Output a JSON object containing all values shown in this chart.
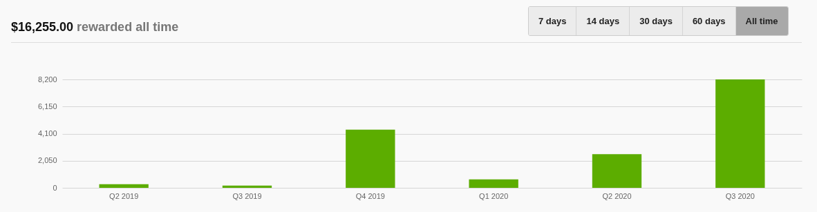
{
  "chart_data": {
    "type": "bar",
    "title": "$16,255.00",
    "subtitle": "rewarded all time",
    "annotations": [
      "7 days",
      "14 days",
      "30 days",
      "60 days",
      "All time"
    ],
    "categories": [
      "Q2 2019",
      "Q3 2019",
      "Q4 2019",
      "Q1 2020",
      "Q2 2020",
      "Q3 2020"
    ],
    "values": [
      280,
      170,
      4400,
      640,
      2550,
      8200
    ],
    "color": "#5cad00",
    "ylim": [
      0,
      8200
    ],
    "yticks": [
      0,
      {
        "value": 2050,
        "label": "2,050"
      },
      {
        "value": 4100,
        "label": "4,100"
      },
      {
        "value": 6150,
        "label": "6,150"
      },
      {
        "value": 8200,
        "label": "8,200"
      }
    ],
    "grid": true
  }
}
